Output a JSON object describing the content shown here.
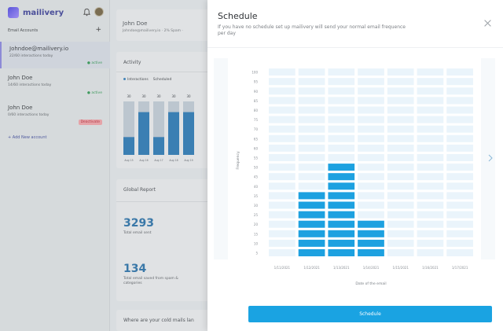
{
  "app": {
    "name": "mailivery"
  },
  "sidebar": {
    "section_label": "Email Accounts",
    "add_symbol": "+",
    "accounts": [
      {
        "name": "Johndoe@mailivery.io",
        "count": "22/60 interactions today",
        "status": "active"
      },
      {
        "name": "John Doe",
        "count": "14/60 interactions today",
        "status": "active"
      },
      {
        "name": "John Doe",
        "count": "0/60 interactions today",
        "status": "Deactivate"
      }
    ],
    "add_account": "+ Add New account"
  },
  "user_card": {
    "name": "John Doe",
    "email": "Johndoe@mailivery.io · 2% Spam ·"
  },
  "activity": {
    "title": "Activity",
    "legend": [
      "Interactions",
      "Scheduled"
    ],
    "bar_labels": [
      "30",
      "30",
      "30",
      "30",
      "30"
    ],
    "dates": [
      "Aug 15",
      "Aug 16",
      "Aug 17",
      "Aug 18",
      "Aug 19"
    ],
    "interaction_values": [
      10,
      24,
      10,
      24,
      24
    ],
    "scheduled_values": [
      30,
      30,
      30,
      30,
      30
    ]
  },
  "report": {
    "title": "Global Report",
    "total_sent_value": "3293",
    "total_sent_label": "Total email sent",
    "saved_value": "134",
    "saved_label": "Total email saved from spam & categories"
  },
  "where_card": {
    "title": "Where are your cold mails lan"
  },
  "modal": {
    "title": "Schedule",
    "subtitle": "If you have no schedule set up mailivery will send your normal email frequence per day",
    "button": "Schedule"
  },
  "chart_data": {
    "type": "bar",
    "ylabel": "Frequency",
    "xlabel": "Date of the email",
    "ylim": [
      0,
      100
    ],
    "y_ticks": [
      5,
      10,
      15,
      20,
      25,
      30,
      35,
      40,
      45,
      50,
      55,
      60,
      65,
      70,
      75,
      80,
      85,
      90,
      95,
      100
    ],
    "categories": [
      "1/11/2021",
      "1/12/2021",
      "1/13/2021",
      "1/14/2021",
      "1/15/2021",
      "1/16/2021",
      "1/17/2021"
    ],
    "values": [
      0,
      35,
      50,
      20,
      0,
      0,
      0
    ],
    "max": 100,
    "step": 5,
    "colors": {
      "filled": "#1da1e0",
      "empty": "#eaf4fb"
    }
  }
}
